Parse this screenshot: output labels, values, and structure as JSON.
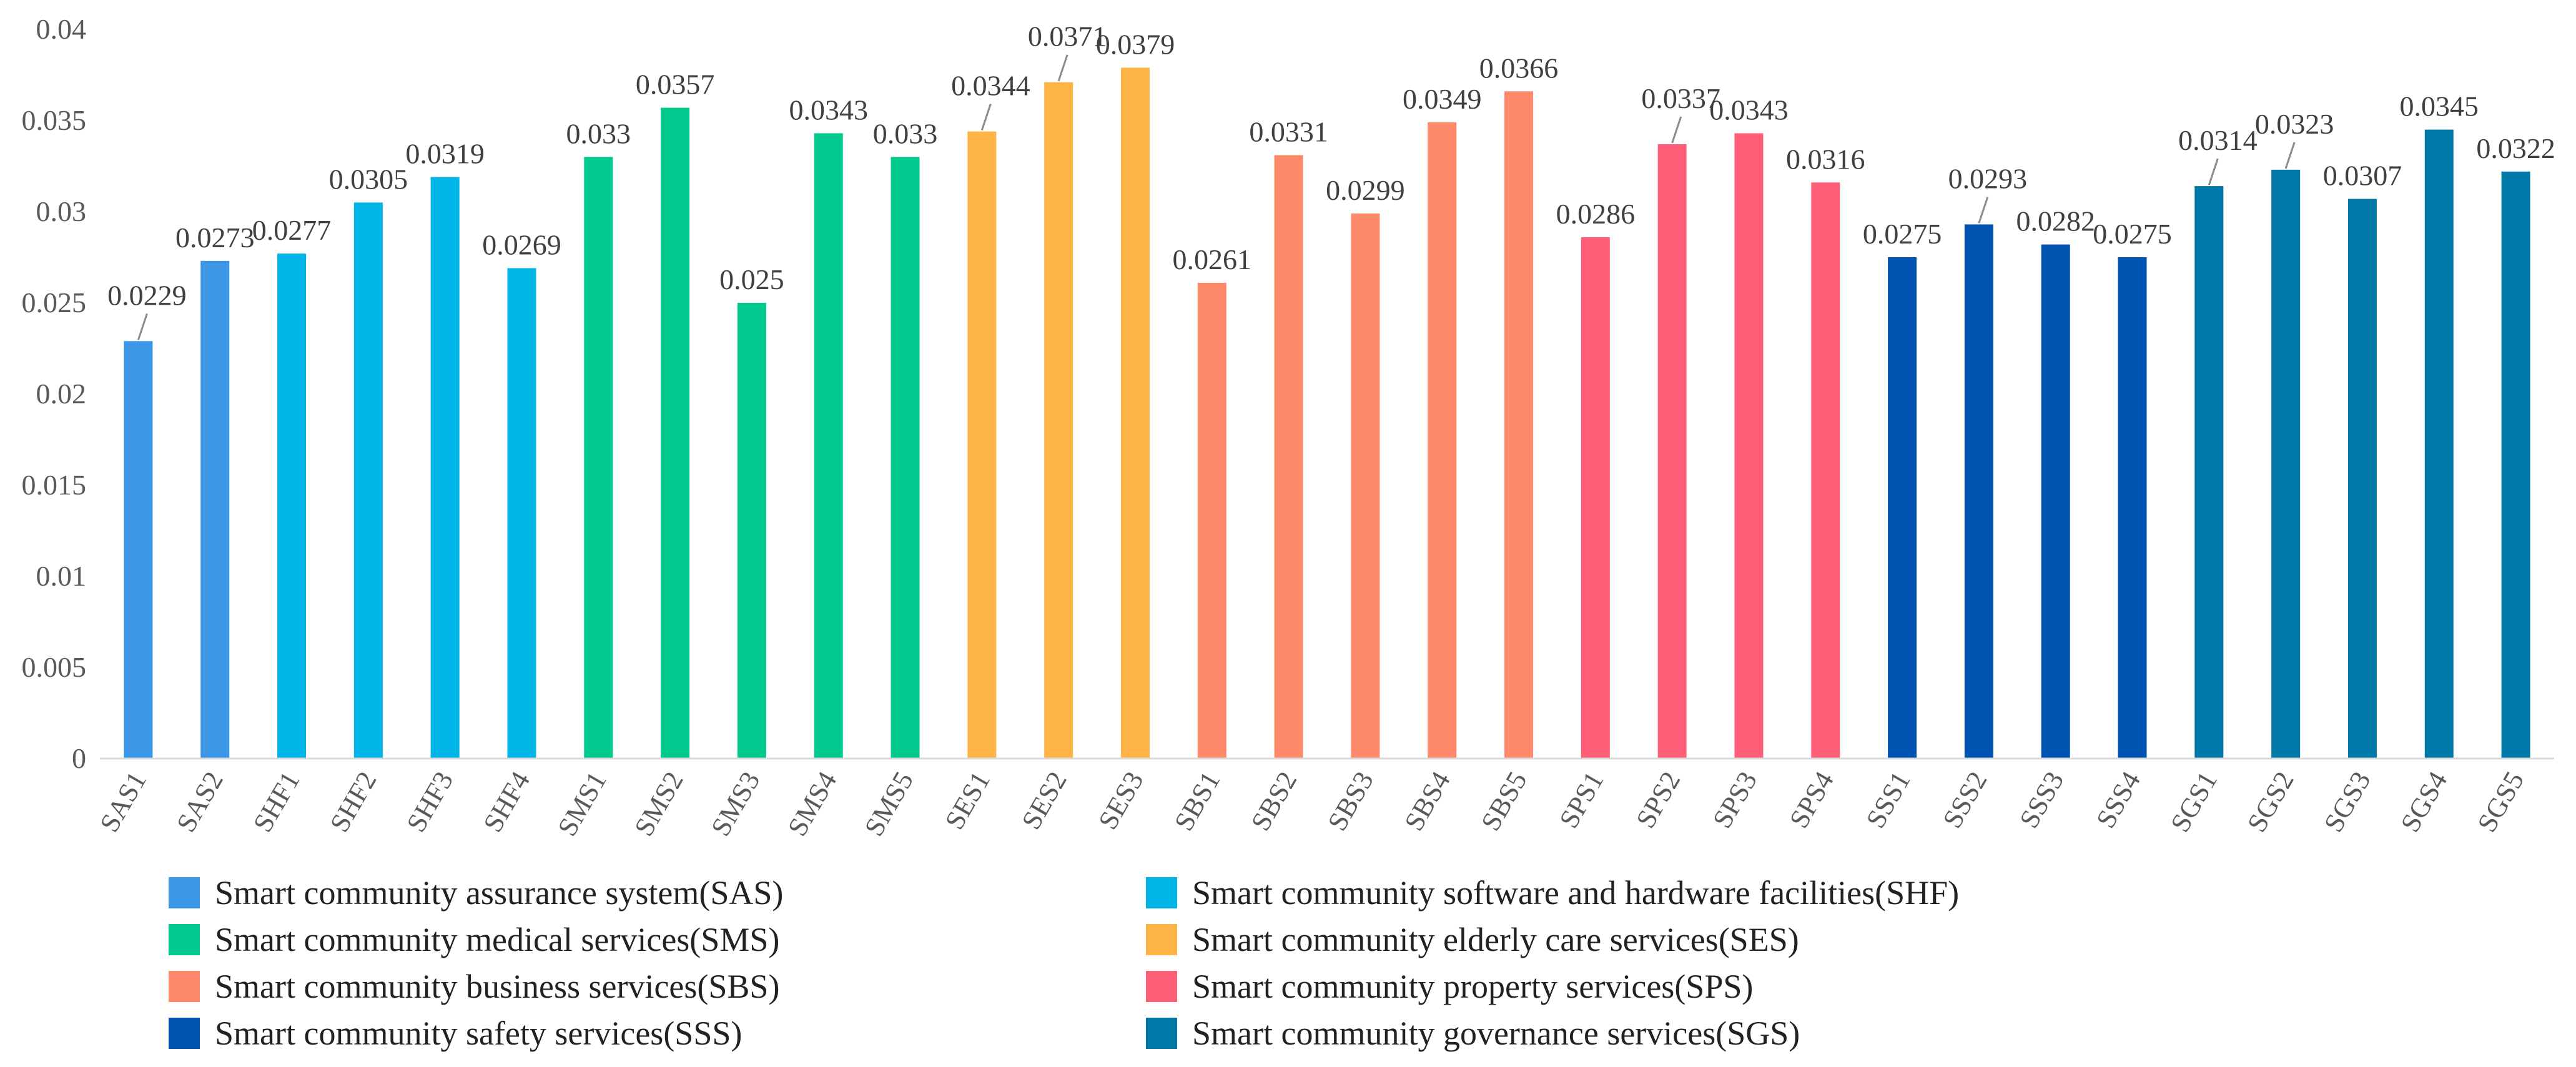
{
  "chart_data": {
    "type": "bar",
    "title": "",
    "xlabel": "",
    "ylabel": "",
    "ylim": [
      0,
      0.04
    ],
    "yticks": [
      {
        "value": 0,
        "label": "0"
      },
      {
        "value": 0.005,
        "label": "0.005"
      },
      {
        "value": 0.01,
        "label": "0.01"
      },
      {
        "value": 0.015,
        "label": "0.015"
      },
      {
        "value": 0.02,
        "label": "0.02"
      },
      {
        "value": 0.025,
        "label": "0.025"
      },
      {
        "value": 0.03,
        "label": "0.03"
      },
      {
        "value": 0.035,
        "label": "0.035"
      },
      {
        "value": 0.04,
        "label": "0.04"
      }
    ],
    "grid": false,
    "legend_position": "bottom",
    "groups": [
      {
        "key": "SAS",
        "name": "Smart community assurance system(SAS)",
        "color": "#3B96E6"
      },
      {
        "key": "SHF",
        "name": "Smart community software and hardware facilities(SHF)",
        "color": "#00B4E6"
      },
      {
        "key": "SMS",
        "name": "Smart community medical services(SMS)",
        "color": "#00C98E"
      },
      {
        "key": "SES",
        "name": "Smart community elderly care services(SES)",
        "color": "#FFB447"
      },
      {
        "key": "SBS",
        "name": "Smart community business services(SBS)",
        "color": "#FF8A6B"
      },
      {
        "key": "SPS",
        "name": "Smart community property services(SPS)",
        "color": "#FF5E78"
      },
      {
        "key": "SSS",
        "name": "Smart community safety services(SSS)",
        "color": "#0052B0"
      },
      {
        "key": "SGS",
        "name": "Smart community governance services(SGS)",
        "color": "#0079A8"
      }
    ],
    "bars": [
      {
        "category": "SAS1",
        "group": "SAS",
        "value": 0.0229,
        "label": "0.0229",
        "leader": true
      },
      {
        "category": "SAS2",
        "group": "SAS",
        "value": 0.0273,
        "label": "0.0273"
      },
      {
        "category": "SHF1",
        "group": "SHF",
        "value": 0.0277,
        "label": "0.0277"
      },
      {
        "category": "SHF2",
        "group": "SHF",
        "value": 0.0305,
        "label": "0.0305"
      },
      {
        "category": "SHF3",
        "group": "SHF",
        "value": 0.0319,
        "label": "0.0319"
      },
      {
        "category": "SHF4",
        "group": "SHF",
        "value": 0.0269,
        "label": "0.0269"
      },
      {
        "category": "SMS1",
        "group": "SMS",
        "value": 0.033,
        "label": "0.033"
      },
      {
        "category": "SMS2",
        "group": "SMS",
        "value": 0.0357,
        "label": "0.0357"
      },
      {
        "category": "SMS3",
        "group": "SMS",
        "value": 0.025,
        "label": "0.025"
      },
      {
        "category": "SMS4",
        "group": "SMS",
        "value": 0.0343,
        "label": "0.0343"
      },
      {
        "category": "SMS5",
        "group": "SMS",
        "value": 0.033,
        "label": "0.033"
      },
      {
        "category": "SES1",
        "group": "SES",
        "value": 0.0344,
        "label": "0.0344",
        "leader": true
      },
      {
        "category": "SES2",
        "group": "SES",
        "value": 0.0371,
        "label": "0.0371",
        "leader": true
      },
      {
        "category": "SES3",
        "group": "SES",
        "value": 0.0379,
        "label": "0.0379"
      },
      {
        "category": "SBS1",
        "group": "SBS",
        "value": 0.0261,
        "label": "0.0261"
      },
      {
        "category": "SBS2",
        "group": "SBS",
        "value": 0.0331,
        "label": "0.0331"
      },
      {
        "category": "SBS3",
        "group": "SBS",
        "value": 0.0299,
        "label": "0.0299"
      },
      {
        "category": "SBS4",
        "group": "SBS",
        "value": 0.0349,
        "label": "0.0349"
      },
      {
        "category": "SBS5",
        "group": "SBS",
        "value": 0.0366,
        "label": "0.0366"
      },
      {
        "category": "SPS1",
        "group": "SPS",
        "value": 0.0286,
        "label": "0.0286"
      },
      {
        "category": "SPS2",
        "group": "SPS",
        "value": 0.0337,
        "label": "0.0337",
        "leader": true
      },
      {
        "category": "SPS3",
        "group": "SPS",
        "value": 0.0343,
        "label": "0.0343"
      },
      {
        "category": "SPS4",
        "group": "SPS",
        "value": 0.0316,
        "label": "0.0316"
      },
      {
        "category": "SSS1",
        "group": "SSS",
        "value": 0.0275,
        "label": "0.0275"
      },
      {
        "category": "SSS2",
        "group": "SSS",
        "value": 0.0293,
        "label": "0.0293",
        "leader": true
      },
      {
        "category": "SSS3",
        "group": "SSS",
        "value": 0.0282,
        "label": "0.0282"
      },
      {
        "category": "SSS4",
        "group": "SSS",
        "value": 0.0275,
        "label": "0.0275"
      },
      {
        "category": "SGS1",
        "group": "SGS",
        "value": 0.0314,
        "label": "0.0314",
        "leader": true
      },
      {
        "category": "SGS2",
        "group": "SGS",
        "value": 0.0323,
        "label": "0.0323",
        "leader": true
      },
      {
        "category": "SGS3",
        "group": "SGS",
        "value": 0.0307,
        "label": "0.0307"
      },
      {
        "category": "SGS4",
        "group": "SGS",
        "value": 0.0345,
        "label": "0.0345"
      },
      {
        "category": "SGS5",
        "group": "SGS",
        "value": 0.0322,
        "label": "0.0322"
      }
    ]
  }
}
